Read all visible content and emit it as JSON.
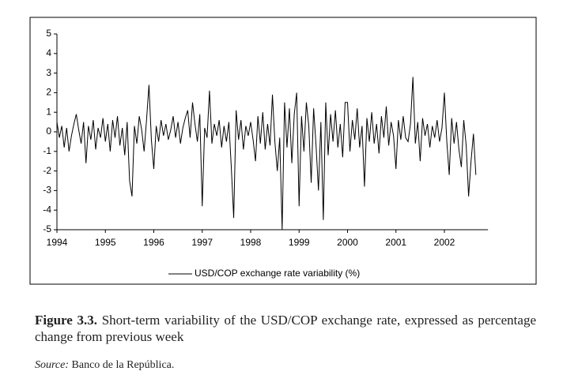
{
  "chart_data": {
    "type": "line",
    "x": [
      1994,
      1994.05,
      1994.1,
      1994.15,
      1994.2,
      1994.25,
      1994.3,
      1994.35,
      1994.4,
      1994.45,
      1994.5,
      1994.55,
      1994.6,
      1994.65,
      1994.7,
      1994.75,
      1994.8,
      1994.85,
      1994.9,
      1994.95,
      1995,
      1995.05,
      1995.1,
      1995.15,
      1995.2,
      1995.25,
      1995.3,
      1995.35,
      1995.4,
      1995.45,
      1995.5,
      1995.55,
      1995.6,
      1995.65,
      1995.7,
      1995.75,
      1995.8,
      1995.85,
      1995.9,
      1995.95,
      1996,
      1996.05,
      1996.1,
      1996.15,
      1996.2,
      1996.25,
      1996.3,
      1996.35,
      1996.4,
      1996.45,
      1996.5,
      1996.55,
      1996.6,
      1996.65,
      1996.7,
      1996.75,
      1996.8,
      1996.85,
      1996.9,
      1996.95,
      1997,
      1997.05,
      1997.1,
      1997.15,
      1997.2,
      1997.25,
      1997.3,
      1997.35,
      1997.4,
      1997.45,
      1997.5,
      1997.55,
      1997.6,
      1997.65,
      1997.7,
      1997.75,
      1997.8,
      1997.85,
      1997.9,
      1997.95,
      1998,
      1998.05,
      1998.1,
      1998.15,
      1998.2,
      1998.25,
      1998.3,
      1998.35,
      1998.4,
      1998.45,
      1998.5,
      1998.55,
      1998.6,
      1998.65,
      1998.7,
      1998.75,
      1998.8,
      1998.85,
      1998.9,
      1998.95,
      1999,
      1999.05,
      1999.1,
      1999.15,
      1999.2,
      1999.25,
      1999.3,
      1999.35,
      1999.4,
      1999.45,
      1999.5,
      1999.55,
      1999.6,
      1999.65,
      1999.7,
      1999.75,
      1999.8,
      1999.85,
      1999.9,
      1999.95,
      2000,
      2000.05,
      2000.1,
      2000.15,
      2000.2,
      2000.25,
      2000.3,
      2000.35,
      2000.4,
      2000.45,
      2000.5,
      2000.55,
      2000.6,
      2000.65,
      2000.7,
      2000.75,
      2000.8,
      2000.85,
      2000.9,
      2000.95,
      2001,
      2001.05,
      2001.1,
      2001.15,
      2001.2,
      2001.25,
      2001.3,
      2001.35,
      2001.4,
      2001.45,
      2001.5,
      2001.55,
      2001.6,
      2001.65,
      2001.7,
      2001.75,
      2001.8,
      2001.85,
      2001.9,
      2001.95,
      2002,
      2002.05,
      2002.1,
      2002.15,
      2002.2,
      2002.25,
      2002.3,
      2002.35,
      2002.4,
      2002.45,
      2002.5,
      2002.55,
      2002.6,
      2002.65
    ],
    "series": [
      {
        "name": "USD/COP exchange rate variability (%)",
        "color": "#000000",
        "values": [
          0.5,
          -0.3,
          0.3,
          -0.8,
          0.2,
          -1.0,
          -0.2,
          0.4,
          0.9,
          0.1,
          -0.6,
          0.5,
          -1.6,
          0.3,
          -0.4,
          0.6,
          -0.9,
          0.2,
          -0.3,
          0.7,
          -0.5,
          0.4,
          -1.0,
          0.6,
          -0.3,
          0.8,
          -0.7,
          0.2,
          -1.2,
          0.5,
          -2.5,
          -3.3,
          0.3,
          -0.6,
          0.8,
          0.1,
          -1.0,
          0.6,
          2.4,
          -0.4,
          -1.9,
          0.3,
          -0.5,
          0.6,
          -0.2,
          0.4,
          -0.4,
          0.1,
          0.8,
          -0.3,
          0.5,
          -0.6,
          0.2,
          0.7,
          1.1,
          -0.3,
          1.5,
          0.4,
          -0.5,
          0.9,
          -3.8,
          0.2,
          -0.3,
          2.1,
          -0.6,
          0.4,
          -0.2,
          0.6,
          -0.8,
          0.3,
          -0.5,
          0.5,
          -1.8,
          -4.4,
          1.1,
          -0.4,
          0.6,
          -0.9,
          0.3,
          -0.2,
          0.5,
          -0.4,
          -1.5,
          0.8,
          -0.6,
          1.0,
          -0.9,
          0.4,
          -0.7,
          1.9,
          -0.5,
          -2.0,
          -0.3,
          -5.0,
          1.5,
          -0.8,
          1.2,
          -1.6,
          0.9,
          2.0,
          -3.8,
          0.8,
          -1.0,
          1.5,
          0.3,
          -2.6,
          1.2,
          -0.7,
          -3.0,
          0.5,
          -4.5,
          1.5,
          -1.2,
          0.9,
          -0.5,
          1.1,
          -0.8,
          0.4,
          -1.3,
          1.5,
          1.5,
          -1.0,
          0.6,
          -0.4,
          1.2,
          -0.8,
          0.3,
          -2.8,
          0.7,
          -0.5,
          1.0,
          -0.6,
          0.4,
          -1.1,
          0.8,
          -0.3,
          1.3,
          -0.7,
          0.5,
          -0.2,
          -1.9,
          0.6,
          -0.4,
          0.8,
          -0.3,
          -0.5,
          0.4,
          2.8,
          -0.6,
          0.5,
          -1.5,
          0.7,
          -0.2,
          0.4,
          -0.8,
          0.3,
          -0.3,
          0.6,
          -0.5,
          0.2,
          2.0,
          -0.5,
          -2.2,
          0.7,
          -0.6,
          0.5,
          -0.9,
          -1.8,
          0.6,
          -0.7,
          -3.3,
          -1.5,
          -0.1,
          -2.2
        ]
      }
    ],
    "xlim": [
      1994,
      2002.9
    ],
    "xticks": [
      1994,
      1995,
      1996,
      1997,
      1998,
      1999,
      2000,
      2001,
      2002
    ],
    "ylim": [
      -5,
      5
    ],
    "yticks": [
      5,
      4,
      3,
      2,
      1,
      0,
      -1,
      -2,
      -3,
      -4,
      -5
    ],
    "legend": "bottom"
  },
  "caption": {
    "label": "Figure 3.3.",
    "text": "Short-term variability of the USD/COP exchange rate, expressed as percentage change from previous week"
  },
  "source": {
    "label": "Source:",
    "text": "Banco de la República."
  }
}
